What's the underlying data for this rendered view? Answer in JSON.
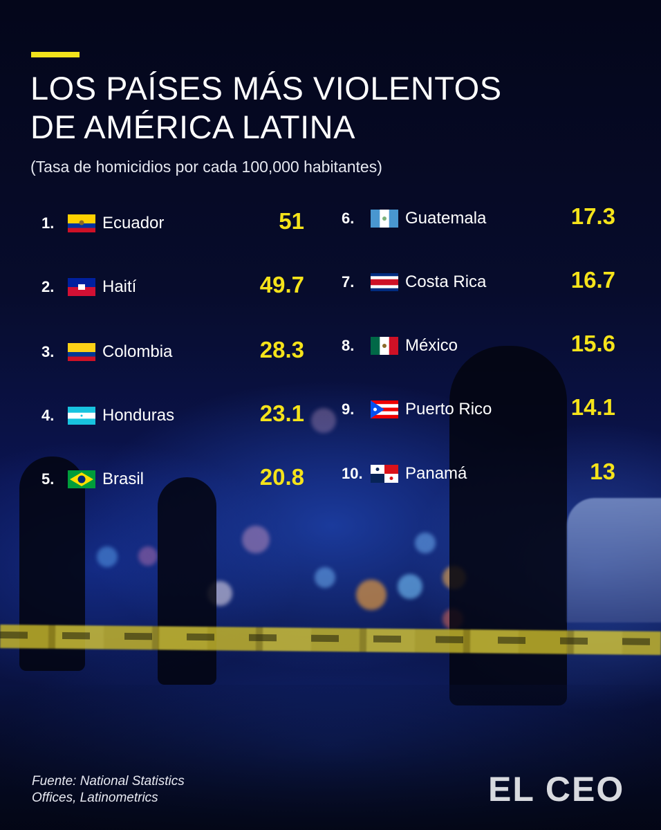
{
  "header": {
    "title_line1": "LOS PAÍSES MÁS VIOLENTOS",
    "title_line2": "DE AMÉRICA LATINA",
    "subtitle": "(Tasa de homicidios por cada 100,000 habitantes)"
  },
  "colors": {
    "accent": "#f2e21c",
    "value": "#f5e31a",
    "text": "#ffffff",
    "background": "#070c2c"
  },
  "rankings": [
    {
      "rank": "1.",
      "country": "Ecuador",
      "rate": "51",
      "flag": "ecuador-flag-icon"
    },
    {
      "rank": "2.",
      "country": "Haití",
      "rate": "49.7",
      "flag": "haiti-flag-icon"
    },
    {
      "rank": "3.",
      "country": "Colombia",
      "rate": "28.3",
      "flag": "colombia-flag-icon"
    },
    {
      "rank": "4.",
      "country": "Honduras",
      "rate": "23.1",
      "flag": "honduras-flag-icon"
    },
    {
      "rank": "5.",
      "country": "Brasil",
      "rate": "20.8",
      "flag": "brazil-flag-icon"
    },
    {
      "rank": "6.",
      "country": "Guatemala",
      "rate": "17.3",
      "flag": "guatemala-flag-icon"
    },
    {
      "rank": "7.",
      "country": "Costa Rica",
      "rate": "16.7",
      "flag": "costa-rica-flag-icon"
    },
    {
      "rank": "8.",
      "country": "México",
      "rate": "15.6",
      "flag": "mexico-flag-icon"
    },
    {
      "rank": "9.",
      "country": "Puerto Rico",
      "rate": "14.1",
      "flag": "puerto-rico-flag-icon"
    },
    {
      "rank": "10.",
      "country": "Panamá",
      "rate": "13",
      "flag": "panama-flag-icon"
    }
  ],
  "footer": {
    "source_line1": "Fuente: National Statistics",
    "source_line2": "Offices, Latinometrics",
    "logo": "EL CEO"
  }
}
